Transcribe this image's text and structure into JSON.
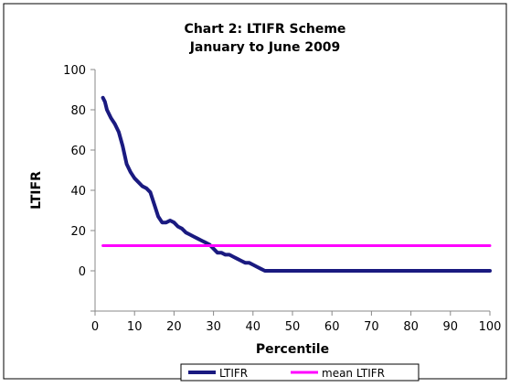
{
  "chart_data": {
    "type": "line",
    "title": "Chart 2: LTIFR Scheme",
    "subtitle": "January to June 2009",
    "xlabel": "Percentile",
    "ylabel": "LTIFR",
    "xlim": [
      0,
      100
    ],
    "ylim": [
      -20,
      100
    ],
    "xticks": [
      "0",
      "10",
      "20",
      "30",
      "40",
      "50",
      "60",
      "70",
      "80",
      "90",
      "100"
    ],
    "yticks": [
      "0",
      "20",
      "40",
      "60",
      "80",
      "100"
    ],
    "grid": false,
    "legend_position": "bottom",
    "series": [
      {
        "name": "LTIFR",
        "color": "#1a1a80",
        "x": [
          2,
          2.5,
          3,
          4,
          5,
          6,
          7,
          8,
          9,
          10,
          11,
          12,
          13,
          14,
          15,
          16,
          17,
          18,
          19,
          20,
          21,
          22,
          23,
          24,
          25,
          26,
          27,
          28,
          29,
          30,
          31,
          32,
          33,
          34,
          35,
          36,
          37,
          38,
          39,
          40,
          41,
          42,
          43,
          44,
          45,
          46,
          47,
          48,
          50,
          60,
          70,
          80,
          90,
          100
        ],
        "values": [
          86,
          84,
          80,
          76,
          73,
          69,
          62,
          53,
          49,
          46,
          44,
          42,
          41,
          39,
          33,
          27,
          24,
          24,
          25,
          24,
          22,
          21,
          19,
          18,
          17,
          16,
          15,
          14,
          13,
          11,
          9,
          9,
          8,
          8,
          7,
          6,
          5,
          4,
          4,
          3,
          2,
          1,
          0,
          0,
          0,
          0,
          0,
          0,
          0,
          0,
          0,
          0,
          0,
          0
        ]
      },
      {
        "name": "mean LTIFR",
        "color": "#ff00ff",
        "x": [
          2,
          100
        ],
        "values": [
          12.5,
          12.5
        ]
      }
    ]
  }
}
